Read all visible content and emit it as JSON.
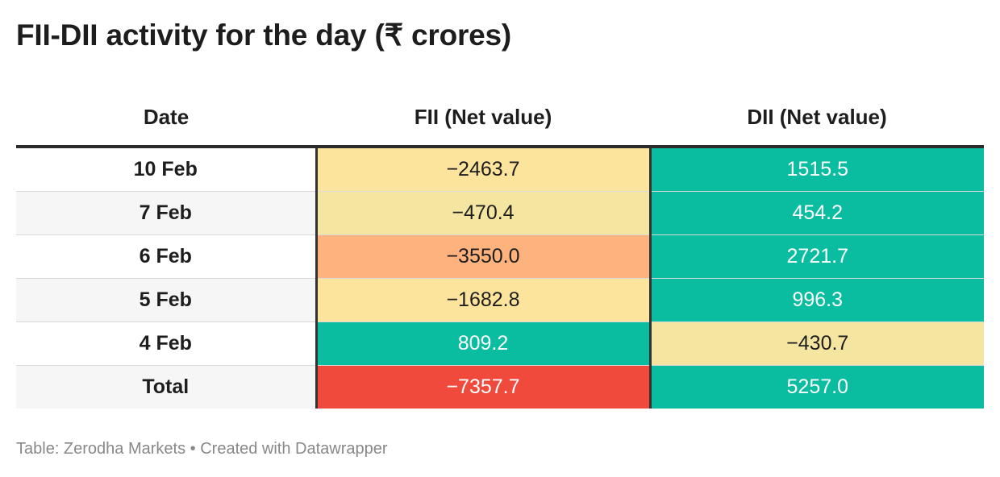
{
  "title": "FII-DII activity for the day (₹ crores)",
  "footer": "Table: Zerodha Markets • Created with Datawrapper",
  "chart_data": {
    "type": "table",
    "title": "FII-DII activity for the day (₹ crores)",
    "columns": [
      "Date",
      "FII (Net value)",
      "DII (Net value)"
    ],
    "rows": [
      {
        "date": "10 Feb",
        "fii": "−2463.7",
        "dii": "1515.5",
        "fii_value": -2463.7,
        "dii_value": 1515.5
      },
      {
        "date": "7 Feb",
        "fii": "−470.4",
        "dii": "454.2",
        "fii_value": -470.4,
        "dii_value": 454.2
      },
      {
        "date": "6 Feb",
        "fii": "−3550.0",
        "dii": "2721.7",
        "fii_value": -3550.0,
        "dii_value": 2721.7
      },
      {
        "date": "5 Feb",
        "fii": "−1682.8",
        "dii": "996.3",
        "fii_value": -1682.8,
        "dii_value": 996.3
      },
      {
        "date": "4 Feb",
        "fii": "809.2",
        "dii": "−430.7",
        "fii_value": 809.2,
        "dii_value": -430.7
      },
      {
        "date": "Total",
        "fii": "−7357.7",
        "dii": "5257.0",
        "fii_value": -7357.7,
        "dii_value": 5257.0
      }
    ],
    "cell_colors": {
      "positive": "#0abda0",
      "light_negative": "#f4e6a0",
      "mid_negative": "#fde49c",
      "strong_negative": "#feb27e",
      "total_negative": "#ef4a3c"
    }
  }
}
